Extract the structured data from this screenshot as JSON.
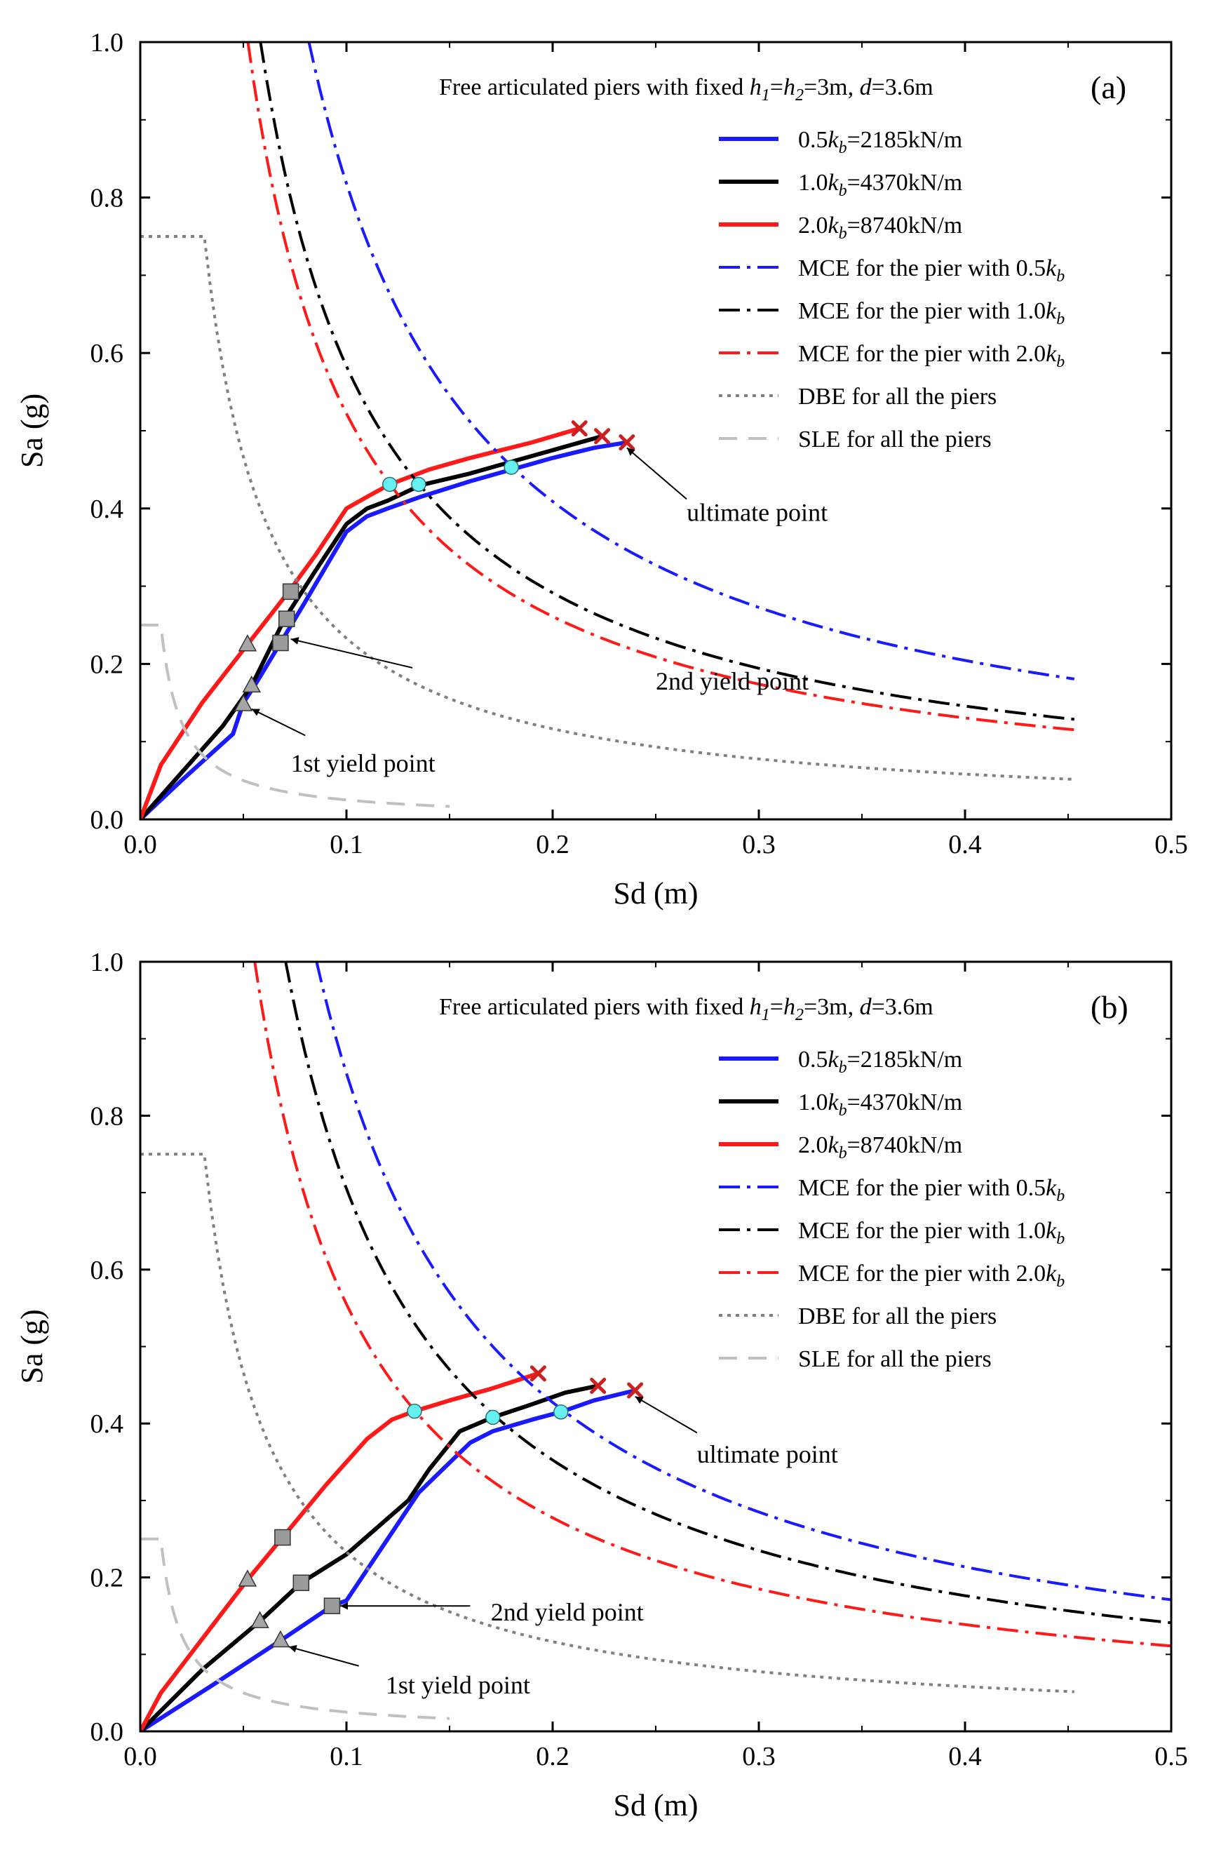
{
  "colors": {
    "blue": "#1a1aff",
    "black": "#000000",
    "red": "#ff1a1a",
    "dbe": "#808080",
    "sle": "#c0c0c0",
    "circle": "#66f0f0",
    "square": "#9a9a9a",
    "triangle": "#a6a6a6",
    "cross": "#cc2020"
  },
  "chart_data": [
    {
      "type": "line",
      "panel_label": "(a)",
      "title": "Free articulated piers with fixed h1=h2=3m, d=3.6m",
      "title_parts": {
        "lead": "Free articulated piers with fixed ",
        "h1": "h",
        "s1": "1",
        "eq1": "=",
        "h2": "h",
        "s2": "2",
        "eq2": "=3m, ",
        "d": "d",
        "tail": "=3.6m"
      },
      "xlabel": "Sd (m)",
      "ylabel": "Sa (g)",
      "xlim": [
        0,
        0.5
      ],
      "ylim": [
        0,
        1.0
      ],
      "xticks": [
        "0.0",
        "0.1",
        "0.2",
        "0.3",
        "0.4",
        "0.5"
      ],
      "yticks": [
        "0.0",
        "0.2",
        "0.4",
        "0.6",
        "0.8",
        "1.0"
      ],
      "series": [
        {
          "name": "0.5kb=2185kN/m",
          "legend": {
            "pre": "0.5",
            "k": "k",
            "sub": "b",
            "post": "=2185kN/m"
          },
          "style": "solid",
          "color": "blue",
          "x": [
            0,
            0.02,
            0.045,
            0.05,
            0.055,
            0.068,
            0.08,
            0.1,
            0.11,
            0.12,
            0.136,
            0.16,
            0.18,
            0.2,
            0.22,
            0.236
          ],
          "y": [
            0,
            0.05,
            0.11,
            0.15,
            0.17,
            0.227,
            0.28,
            0.37,
            0.39,
            0.4,
            0.415,
            0.435,
            0.45,
            0.465,
            0.478,
            0.485
          ]
        },
        {
          "name": "1.0kb=4370kN/m",
          "legend": {
            "pre": "1.0",
            "k": "k",
            "sub": "b",
            "post": "=4370kN/m"
          },
          "style": "solid",
          "color": "black",
          "x": [
            0,
            0.02,
            0.04,
            0.054,
            0.07,
            0.085,
            0.1,
            0.11,
            0.12,
            0.136,
            0.16,
            0.18,
            0.2,
            0.224
          ],
          "y": [
            0,
            0.06,
            0.12,
            0.172,
            0.258,
            0.32,
            0.38,
            0.4,
            0.41,
            0.43,
            0.445,
            0.46,
            0.475,
            0.493
          ]
        },
        {
          "name": "2.0kb=8740kN/m",
          "legend": {
            "pre": "2.0",
            "k": "k",
            "sub": "b",
            "post": "=8740kN/m"
          },
          "style": "solid",
          "color": "red",
          "x": [
            0,
            0.01,
            0.03,
            0.052,
            0.072,
            0.085,
            0.1,
            0.11,
            0.121,
            0.14,
            0.16,
            0.19,
            0.213
          ],
          "y": [
            0,
            0.07,
            0.15,
            0.225,
            0.293,
            0.34,
            0.4,
            0.415,
            0.431,
            0.45,
            0.465,
            0.485,
            0.503
          ]
        },
        {
          "name": "MCE for the pier with 0.5kb",
          "legend": {
            "pre": "MCE for the pier with 0.5",
            "k": "k",
            "sub": "b",
            "post": ""
          },
          "style": "dashdot",
          "color": "blue",
          "curve": "mce",
          "coef": 0.0818,
          "x_start": 0.0818,
          "x_end": 0.453
        },
        {
          "name": "MCE for the pier with 1.0kb",
          "legend": {
            "pre": "MCE for the pier with 1.0",
            "k": "k",
            "sub": "b",
            "post": ""
          },
          "style": "dashdot",
          "color": "black",
          "curve": "mce",
          "coef": 0.0583,
          "x_start": 0.0583,
          "x_end": 0.453
        },
        {
          "name": "MCE for the pier with 2.0kb",
          "legend": {
            "pre": "MCE for the pier with 2.0",
            "k": "k",
            "sub": "b",
            "post": ""
          },
          "style": "dashdot",
          "color": "red",
          "curve": "mce",
          "coef": 0.0522,
          "x_start": 0.0522,
          "x_end": 0.453
        },
        {
          "name": "DBE for all the piers",
          "legend": {
            "pre": "DBE  for all the piers",
            "k": "",
            "sub": "",
            "post": ""
          },
          "style": "dot",
          "color": "dbe",
          "curve": "design",
          "plateau": 0.75,
          "x_flat_start": 0.0,
          "x_corner": 0.031,
          "coef": 0.0233,
          "x_end": 0.453
        },
        {
          "name": "SLE for all the piers",
          "legend": {
            "pre": "SLE   for all the piers",
            "k": "",
            "sub": "",
            "post": ""
          },
          "style": "dash",
          "color": "sle",
          "curve": "design",
          "plateau": 0.25,
          "x_flat_start": 0.0,
          "x_corner": 0.01,
          "coef": 0.0025,
          "x_end": 0.15
        }
      ],
      "markers": [
        {
          "kind": "triangle",
          "x": 0.05,
          "y": 0.148
        },
        {
          "kind": "triangle",
          "x": 0.054,
          "y": 0.172
        },
        {
          "kind": "triangle",
          "x": 0.052,
          "y": 0.225
        },
        {
          "kind": "square",
          "x": 0.068,
          "y": 0.227
        },
        {
          "kind": "square",
          "x": 0.071,
          "y": 0.258
        },
        {
          "kind": "square",
          "x": 0.073,
          "y": 0.293
        },
        {
          "kind": "circle",
          "x": 0.121,
          "y": 0.431
        },
        {
          "kind": "circle",
          "x": 0.135,
          "y": 0.431
        },
        {
          "kind": "circle",
          "x": 0.18,
          "y": 0.453
        },
        {
          "kind": "cross",
          "x": 0.213,
          "y": 0.503
        },
        {
          "kind": "cross",
          "x": 0.224,
          "y": 0.493
        },
        {
          "kind": "cross",
          "x": 0.236,
          "y": 0.485
        }
      ],
      "annotations": [
        {
          "text": "ultimate point",
          "text_x": 0.265,
          "text_y": 0.395,
          "arrow_from": [
            0.265,
            0.412
          ],
          "arrow_to": [
            0.236,
            0.478
          ]
        },
        {
          "text": "2nd yield point",
          "text_x": 0.25,
          "text_y": 0.178,
          "arrow_from": [
            0.132,
            0.195
          ],
          "arrow_to": [
            0.073,
            0.232
          ]
        },
        {
          "text": "1st yield point",
          "text_x": 0.073,
          "text_y": 0.072,
          "arrow_from": [
            0.08,
            0.108
          ],
          "arrow_to": [
            0.054,
            0.142
          ]
        }
      ]
    },
    {
      "type": "line",
      "panel_label": "(b)",
      "title": "Free articulated piers with fixed h1=h2=3m, d=3.6m",
      "title_parts": {
        "lead": "Free articulated piers with fixed ",
        "h1": "h",
        "s1": "1",
        "eq1": "=",
        "h2": "h",
        "s2": "2",
        "eq2": "=3m, ",
        "d": "d",
        "tail": "=3.6m"
      },
      "xlabel": "Sd (m)",
      "ylabel": "Sa (g)",
      "xlim": [
        0,
        0.5
      ],
      "ylim": [
        0,
        1.0
      ],
      "xticks": [
        "0.0",
        "0.1",
        "0.2",
        "0.3",
        "0.4",
        "0.5"
      ],
      "yticks": [
        "0.0",
        "0.2",
        "0.4",
        "0.6",
        "0.8",
        "1.0"
      ],
      "series": [
        {
          "name": "0.5kb=2185kN/m",
          "legend": {
            "pre": "0.5",
            "k": "k",
            "sub": "b",
            "post": "=2185kN/m"
          },
          "style": "solid",
          "color": "blue",
          "x": [
            0,
            0.035,
            0.068,
            0.093,
            0.1,
            0.115,
            0.135,
            0.16,
            0.171,
            0.19,
            0.204,
            0.22,
            0.24
          ],
          "y": [
            0,
            0.06,
            0.118,
            0.163,
            0.17,
            0.23,
            0.31,
            0.375,
            0.39,
            0.405,
            0.415,
            0.43,
            0.443
          ]
        },
        {
          "name": "1.0kb=4370kN/m",
          "legend": {
            "pre": "1.0",
            "k": "k",
            "sub": "b",
            "post": "=4370kN/m"
          },
          "style": "solid",
          "color": "black",
          "x": [
            0,
            0.03,
            0.058,
            0.078,
            0.1,
            0.13,
            0.14,
            0.155,
            0.171,
            0.19,
            0.206,
            0.222
          ],
          "y": [
            0,
            0.08,
            0.143,
            0.193,
            0.23,
            0.3,
            0.34,
            0.39,
            0.408,
            0.425,
            0.44,
            0.449
          ]
        },
        {
          "name": "2.0kb=8740kN/m",
          "legend": {
            "pre": "2.0",
            "k": "k",
            "sub": "b",
            "post": "=8740kN/m"
          },
          "style": "solid",
          "color": "red",
          "x": [
            0,
            0.01,
            0.03,
            0.052,
            0.069,
            0.09,
            0.11,
            0.122,
            0.133,
            0.15,
            0.17,
            0.193
          ],
          "y": [
            0,
            0.05,
            0.12,
            0.197,
            0.252,
            0.32,
            0.38,
            0.405,
            0.416,
            0.43,
            0.445,
            0.465
          ]
        },
        {
          "name": "MCE for the pier with 0.5kb",
          "legend": {
            "pre": "MCE for the pier with 0.5",
            "k": "k",
            "sub": "b",
            "post": ""
          },
          "style": "dashdot",
          "color": "blue",
          "curve": "mce",
          "coef": 0.0855,
          "x_start": 0.0855,
          "x_end": 0.5
        },
        {
          "name": "MCE for the pier with 1.0kb",
          "legend": {
            "pre": "MCE for the pier with 1.0",
            "k": "k",
            "sub": "b",
            "post": ""
          },
          "style": "dashdot",
          "color": "black",
          "curve": "mce",
          "coef": 0.0705,
          "x_start": 0.0705,
          "x_end": 0.5
        },
        {
          "name": "MCE for the pier with 2.0kb",
          "legend": {
            "pre": "MCE for the pier with 2.0",
            "k": "k",
            "sub": "b",
            "post": ""
          },
          "style": "dashdot",
          "color": "red",
          "curve": "mce",
          "coef": 0.0555,
          "x_start": 0.0555,
          "x_end": 0.5
        },
        {
          "name": "DBE for all the piers",
          "legend": {
            "pre": "DBE  for all the piers",
            "k": "",
            "sub": "",
            "post": ""
          },
          "style": "dot",
          "color": "dbe",
          "curve": "design",
          "plateau": 0.75,
          "x_flat_start": 0.0,
          "x_corner": 0.031,
          "coef": 0.0233,
          "x_end": 0.453
        },
        {
          "name": "SLE for all the piers",
          "legend": {
            "pre": "SLE   for all the piers",
            "k": "",
            "sub": "",
            "post": ""
          },
          "style": "dash",
          "color": "sle",
          "curve": "design",
          "plateau": 0.25,
          "x_flat_start": 0.0,
          "x_corner": 0.01,
          "coef": 0.0025,
          "x_end": 0.15
        }
      ],
      "markers": [
        {
          "kind": "triangle",
          "x": 0.052,
          "y": 0.197
        },
        {
          "kind": "triangle",
          "x": 0.058,
          "y": 0.143
        },
        {
          "kind": "triangle",
          "x": 0.068,
          "y": 0.118
        },
        {
          "kind": "square",
          "x": 0.069,
          "y": 0.252
        },
        {
          "kind": "square",
          "x": 0.078,
          "y": 0.193
        },
        {
          "kind": "square",
          "x": 0.093,
          "y": 0.163
        },
        {
          "kind": "circle",
          "x": 0.133,
          "y": 0.416
        },
        {
          "kind": "circle",
          "x": 0.171,
          "y": 0.408
        },
        {
          "kind": "circle",
          "x": 0.204,
          "y": 0.415
        },
        {
          "kind": "cross",
          "x": 0.193,
          "y": 0.465
        },
        {
          "kind": "cross",
          "x": 0.222,
          "y": 0.449
        },
        {
          "kind": "cross",
          "x": 0.24,
          "y": 0.443
        }
      ],
      "annotations": [
        {
          "text": "ultimate point",
          "text_x": 0.27,
          "text_y": 0.36,
          "arrow_from": [
            0.27,
            0.388
          ],
          "arrow_to": [
            0.24,
            0.435
          ]
        },
        {
          "text": "2nd yield point",
          "text_x": 0.17,
          "text_y": 0.155,
          "arrow_from": [
            0.16,
            0.163
          ],
          "arrow_to": [
            0.097,
            0.163
          ]
        },
        {
          "text": "1st yield point",
          "text_x": 0.119,
          "text_y": 0.06,
          "arrow_from": [
            0.106,
            0.085
          ],
          "arrow_to": [
            0.072,
            0.11
          ]
        }
      ]
    }
  ]
}
